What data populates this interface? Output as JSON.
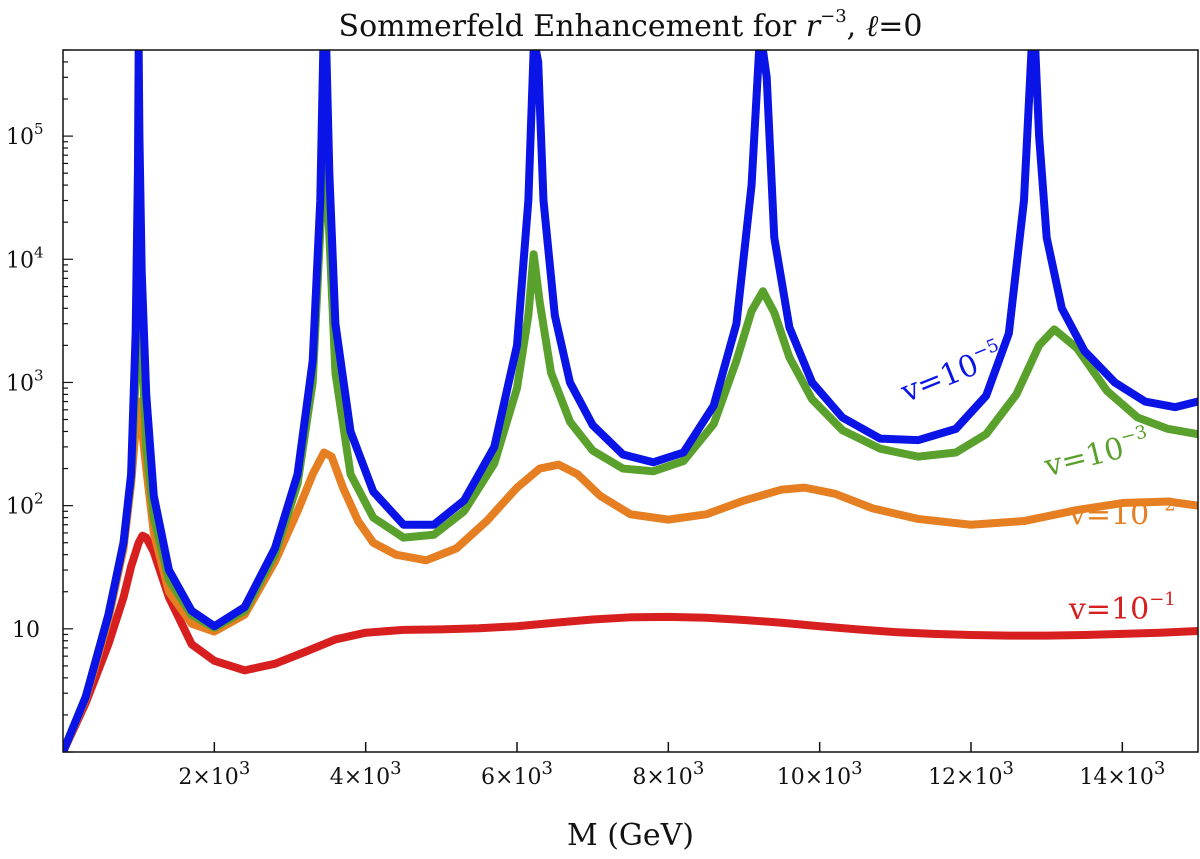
{
  "chart_data": {
    "type": "line",
    "title": {
      "prefix": "Sommerfeld Enhancement for ",
      "var": "r",
      "exp": "−3",
      "sep": ", ",
      "ell": "ℓ",
      "suffix": "=0"
    },
    "xlabel": "M (GeV)",
    "ylabel": "",
    "x_scale": "linear",
    "y_scale": "log",
    "xlim": [
      0,
      15000
    ],
    "ylim": [
      1,
      500000
    ],
    "grid": false,
    "x_ticks": [
      {
        "value": 2000,
        "base": "2×10",
        "exp": "3"
      },
      {
        "value": 4000,
        "base": "4×10",
        "exp": "3"
      },
      {
        "value": 6000,
        "base": "6×10",
        "exp": "3"
      },
      {
        "value": 8000,
        "base": "8×10",
        "exp": "3"
      },
      {
        "value": 10000,
        "base": "10×10",
        "exp": "3"
      },
      {
        "value": 12000,
        "base": "12×10",
        "exp": "3"
      },
      {
        "value": 14000,
        "base": "14×10",
        "exp": "3"
      }
    ],
    "y_ticks": [
      {
        "value": 10,
        "base": "10",
        "exp": ""
      },
      {
        "value": 100,
        "base": "10",
        "exp": "2"
      },
      {
        "value": 1000,
        "base": "10",
        "exp": "3"
      },
      {
        "value": 10000,
        "base": "10",
        "exp": "4"
      },
      {
        "value": 100000,
        "base": "10",
        "exp": "5"
      }
    ],
    "series": [
      {
        "name": "v=10^-1",
        "label_base": "v=10",
        "label_exp": "−1",
        "color": "#d71f1f",
        "x": [
          0,
          300,
          600,
          800,
          900,
          1000,
          1050,
          1100,
          1200,
          1400,
          1700,
          2000,
          2400,
          2800,
          3200,
          3600,
          4000,
          4500,
          5000,
          5500,
          6000,
          6500,
          7000,
          7500,
          8000,
          8500,
          9000,
          9500,
          10000,
          10500,
          11000,
          11500,
          12000,
          12500,
          13000,
          13500,
          14000,
          14500,
          15000
        ],
        "y": [
          1,
          2.5,
          7.5,
          18,
          32,
          50,
          57,
          55,
          42,
          18,
          7.5,
          5.5,
          4.6,
          5.2,
          6.5,
          8.2,
          9.3,
          9.8,
          9.9,
          10.1,
          10.5,
          11.2,
          11.9,
          12.4,
          12.5,
          12.3,
          11.8,
          11.2,
          10.5,
          9.9,
          9.4,
          9.1,
          8.9,
          8.8,
          8.8,
          8.9,
          9.1,
          9.3,
          9.6
        ]
      },
      {
        "name": "v=10^-2",
        "label_base": "v=10",
        "label_exp": "−2",
        "color": "#e67e22",
        "x": [
          0,
          300,
          600,
          800,
          900,
          970,
          1000,
          1030,
          1100,
          1200,
          1400,
          1700,
          2000,
          2400,
          2800,
          3100,
          3300,
          3450,
          3550,
          3700,
          3900,
          4100,
          4400,
          4800,
          5200,
          5600,
          6000,
          6300,
          6550,
          6800,
          7100,
          7500,
          8000,
          8500,
          9000,
          9500,
          9800,
          10200,
          10700,
          11300,
          12000,
          12700,
          13400,
          14000,
          14600,
          15000
        ],
        "y": [
          1,
          2.7,
          12,
          45,
          150,
          500,
          700,
          500,
          200,
          60,
          20,
          11,
          9.5,
          13,
          35,
          90,
          180,
          270,
          250,
          140,
          75,
          50,
          40,
          36,
          45,
          75,
          140,
          200,
          215,
          180,
          120,
          85,
          77,
          85,
          110,
          135,
          140,
          125,
          95,
          78,
          70,
          75,
          92,
          105,
          108,
          100
        ]
      },
      {
        "name": "v=10^-3",
        "label_base": "v=10",
        "label_exp": "−3",
        "color": "#5aa02c",
        "x": [
          0,
          300,
          600,
          800,
          900,
          970,
          1000,
          1030,
          1100,
          1200,
          1400,
          1700,
          2000,
          2400,
          2800,
          3100,
          3300,
          3420,
          3460,
          3500,
          3600,
          3800,
          4100,
          4500,
          4900,
          5300,
          5700,
          6000,
          6150,
          6220,
          6300,
          6450,
          6700,
          7000,
          7400,
          7800,
          8200,
          8600,
          8900,
          9100,
          9250,
          9400,
          9600,
          9900,
          10300,
          10800,
          11300,
          11800,
          12200,
          12600,
          12900,
          13100,
          13400,
          13800,
          14200,
          14600,
          15000
        ],
        "y": [
          1,
          2.8,
          13,
          50,
          170,
          1500,
          30000,
          3000,
          300,
          80,
          25,
          13,
          10.2,
          14,
          40,
          150,
          1000,
          30000,
          500000,
          30000,
          1200,
          180,
          80,
          55,
          58,
          90,
          220,
          900,
          3500,
          11000,
          4500,
          1200,
          480,
          280,
          200,
          190,
          230,
          460,
          1500,
          3800,
          5500,
          3700,
          1600,
          730,
          410,
          290,
          250,
          270,
          380,
          800,
          2000,
          2700,
          1900,
          850,
          520,
          420,
          380
        ]
      },
      {
        "name": "v=10^-5",
        "label_base": "v=10",
        "label_exp": "−5",
        "color": "#0a14e6",
        "x": [
          0,
          300,
          600,
          800,
          900,
          960,
          990,
          1000,
          1010,
          1040,
          1100,
          1200,
          1400,
          1700,
          2000,
          2400,
          2800,
          3100,
          3300,
          3400,
          3440,
          3460,
          3480,
          3520,
          3600,
          3800,
          4100,
          4500,
          4900,
          5300,
          5700,
          6000,
          6150,
          6220,
          6250,
          6280,
          6350,
          6500,
          6700,
          7000,
          7400,
          7800,
          8200,
          8600,
          8900,
          9100,
          9200,
          9250,
          9300,
          9400,
          9600,
          9900,
          10300,
          10800,
          11300,
          11800,
          12200,
          12500,
          12700,
          12800,
          12850,
          12900,
          13000,
          13200,
          13500,
          13900,
          14300,
          14700,
          15000
        ],
        "y": [
          1,
          2.8,
          13,
          50,
          180,
          2500,
          50000,
          500000,
          100000,
          8000,
          800,
          120,
          30,
          14,
          10.5,
          15,
          45,
          180,
          1500,
          30000,
          500000,
          500000,
          500000,
          50000,
          3000,
          400,
          130,
          70,
          70,
          110,
          300,
          2000,
          30000,
          500000,
          500000,
          400000,
          30000,
          3500,
          1000,
          450,
          260,
          225,
          270,
          650,
          3000,
          40000,
          500000,
          500000,
          300000,
          15000,
          2800,
          1000,
          520,
          350,
          340,
          420,
          780,
          2500,
          30000,
          500000,
          500000,
          100000,
          15000,
          4000,
          1800,
          1000,
          700,
          630,
          700
        ]
      }
    ]
  }
}
